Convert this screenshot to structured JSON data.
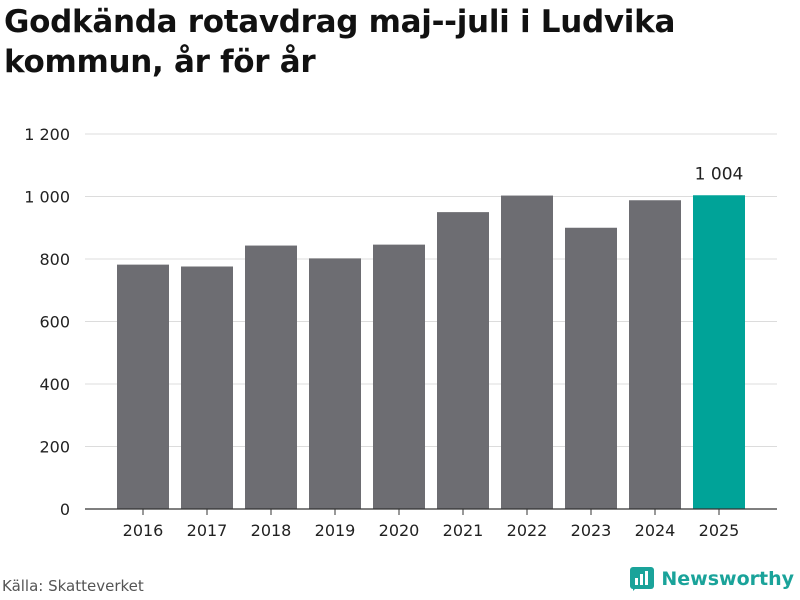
{
  "title": "Godkända rotavdrag maj--juli i Ludvika kommun, år för år",
  "source": "Källa: Skatteverket",
  "brand": {
    "name": "Newsworthy",
    "icon": "newsworthy-logo-icon"
  },
  "colors": {
    "bar": "#6d6d72",
    "highlight": "#00a398",
    "grid": "#dcdcdc",
    "axis": "#333333"
  },
  "chart_data": {
    "type": "bar",
    "title": "Godkända rotavdrag maj--juli i Ludvika kommun, år för år",
    "xlabel": "",
    "ylabel": "",
    "categories": [
      "2016",
      "2017",
      "2018",
      "2019",
      "2020",
      "2021",
      "2022",
      "2023",
      "2024",
      "2025"
    ],
    "values": [
      782,
      776,
      843,
      802,
      846,
      950,
      1003,
      900,
      988,
      1004
    ],
    "highlight_index": 9,
    "data_labels": [
      {
        "index": 9,
        "text": "1 004"
      }
    ],
    "ylim": [
      0,
      1200
    ],
    "yticks": [
      0,
      200,
      400,
      600,
      800,
      1000,
      1200
    ],
    "ytick_labels": [
      "0",
      "200",
      "400",
      "600",
      "800",
      "1 000",
      "1 200"
    ],
    "grid": true,
    "legend": "none"
  }
}
